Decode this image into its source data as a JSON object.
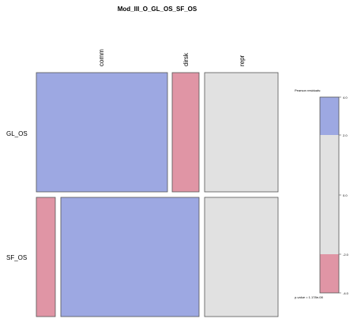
{
  "chart_data": {
    "type": "mosaic",
    "title": "Mod_III_O_GL_OS_SF_OS",
    "columns": [
      "comm",
      "dirsk",
      "repr"
    ],
    "rows": [
      {
        "name": "GL_OS",
        "cells": [
          {
            "label": "comm",
            "width_share": 0.544,
            "residual_sign": "positive"
          },
          {
            "label": "dirsk",
            "width_share": 0.111,
            "residual_sign": "negative"
          },
          {
            "label": "repr",
            "width_share": 0.299,
            "residual_sign": "neutral"
          }
        ]
      },
      {
        "name": "SF_OS",
        "cells": [
          {
            "label": "dirsk",
            "width_share": 0.081,
            "residual_sign": "negative"
          },
          {
            "label": "comm",
            "width_share": 0.557,
            "residual_sign": "positive"
          },
          {
            "label": "repr",
            "width_share": 0.303,
            "residual_sign": "neutral"
          }
        ]
      }
    ],
    "legend": {
      "title_top": "Pearson residuals:",
      "title_bottom": "p-value = 1.178e-08",
      "ticks": [
        "4.0",
        "2.0",
        "0.0",
        "-2.0",
        "-4.0"
      ],
      "range": [
        -4.0,
        4.0
      ]
    },
    "colors": {
      "positive": "#9da8e2",
      "negative": "#e095a5",
      "neutral": "#e1e1e1"
    }
  }
}
